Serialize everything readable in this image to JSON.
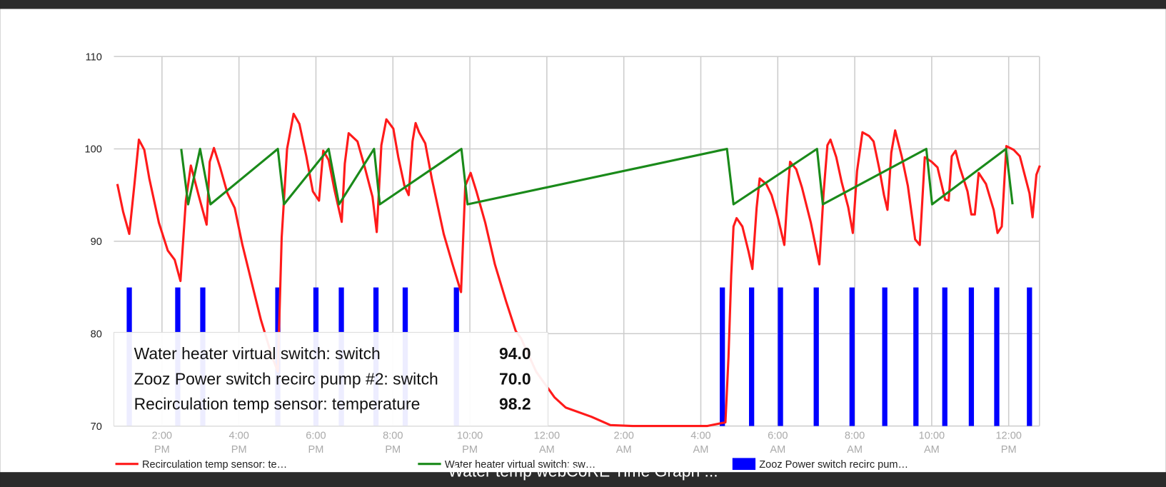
{
  "chart_data": {
    "type": "line",
    "xlim": [
      12.75,
      36.8
    ],
    "ylim": [
      70,
      110
    ],
    "yticks": [
      70,
      80,
      90,
      100,
      110
    ],
    "xticks": [
      {
        "value": 14,
        "label": "2:00 PM"
      },
      {
        "value": 16,
        "label": "4:00 PM"
      },
      {
        "value": 18,
        "label": "6:00 PM"
      },
      {
        "value": 20,
        "label": "8:00 PM"
      },
      {
        "value": 22,
        "label": "10:00 PM"
      },
      {
        "value": 24,
        "label": "12:00 AM"
      },
      {
        "value": 26,
        "label": "2:00 AM"
      },
      {
        "value": 28,
        "label": "4:00 AM"
      },
      {
        "value": 30,
        "label": "6:00 AM"
      },
      {
        "value": 32,
        "label": "8:00 AM"
      },
      {
        "value": 34,
        "label": "10:00 AM"
      },
      {
        "value": 36,
        "label": "12:00 PM"
      }
    ],
    "grid": true,
    "series": [
      {
        "name": "Recirculation temp sensor: te…",
        "color": "#ff1a1a",
        "type": "line",
        "x": [
          12.84,
          12.99,
          13.15,
          13.29,
          13.4,
          13.54,
          13.67,
          13.92,
          14.15,
          14.33,
          14.48,
          14.62,
          14.75,
          14.95,
          15.16,
          15.24,
          15.35,
          15.51,
          15.7,
          15.89,
          16.09,
          16.38,
          16.57,
          16.86,
          17.01,
          17.11,
          17.25,
          17.42,
          17.57,
          17.75,
          17.92,
          18.08,
          18.19,
          18.33,
          18.48,
          18.67,
          18.75,
          18.85,
          19.08,
          19.27,
          19.47,
          19.58,
          19.7,
          19.83,
          20.01,
          20.14,
          20.3,
          20.41,
          20.51,
          20.59,
          20.68,
          20.84,
          21.01,
          21.32,
          21.55,
          21.77,
          21.88,
          22.02,
          22.17,
          22.4,
          22.65,
          22.94,
          23.19,
          23.33,
          23.72,
          24.2,
          24.49,
          25.16,
          25.65,
          26.23,
          28.16,
          28.64,
          28.72,
          28.79,
          28.85,
          28.93,
          29.08,
          29.24,
          29.34,
          29.45,
          29.53,
          29.7,
          29.84,
          29.99,
          30.17,
          30.25,
          30.32,
          30.48,
          30.63,
          30.86,
          31.08,
          31.19,
          31.29,
          31.37,
          31.52,
          31.66,
          31.83,
          31.95,
          32.06,
          32.2,
          32.37,
          32.49,
          32.64,
          32.76,
          32.85,
          32.95,
          33.05,
          33.22,
          33.38,
          33.57,
          33.69,
          33.82,
          34.0,
          34.15,
          34.35,
          34.44,
          34.52,
          34.62,
          34.73,
          34.93,
          35.03,
          35.12,
          35.22,
          35.41,
          35.61,
          35.71,
          35.82,
          35.94,
          36.13,
          36.29,
          36.54,
          36.62,
          36.72,
          36.81
        ],
        "values": [
          96.2,
          93.2,
          90.8,
          96.4,
          101,
          99.9,
          96.8,
          92,
          89,
          88,
          85.7,
          94.4,
          98.2,
          95,
          91.8,
          98.6,
          100.1,
          98,
          95.2,
          93.6,
          89.6,
          84.7,
          81.5,
          77.5,
          75.9,
          90.4,
          100,
          103.8,
          102.7,
          99.2,
          95.4,
          94.4,
          99.8,
          98.8,
          95.6,
          92.1,
          98.4,
          101.7,
          100.8,
          98,
          94.8,
          91,
          100.4,
          103.2,
          102.2,
          99.1,
          96,
          95,
          100.8,
          102.8,
          101.8,
          100.6,
          96.8,
          90.8,
          87.5,
          84.5,
          96,
          97.4,
          95.4,
          92,
          87.5,
          83.5,
          80.3,
          79.5,
          75.9,
          73.1,
          72,
          71,
          70.1,
          70,
          70,
          70.4,
          77.5,
          86.3,
          91.6,
          92.5,
          91.6,
          88.9,
          87,
          93.6,
          96.8,
          96.2,
          95,
          92.8,
          89.6,
          94.8,
          98.6,
          97.8,
          95.8,
          92,
          87.5,
          95.2,
          100.4,
          101,
          99.1,
          96.4,
          93.7,
          90.9,
          97.6,
          101.8,
          101.4,
          100.8,
          97.8,
          95,
          93.4,
          99.6,
          102,
          99.2,
          96,
          90.2,
          89.6,
          99.1,
          98.6,
          98,
          94.5,
          94.4,
          99.2,
          99.8,
          98,
          95.4,
          92.9,
          92.9,
          97.4,
          96.2,
          93.4,
          90.9,
          91.6,
          100.3,
          99.9,
          99.2,
          95.2,
          92.6,
          97.2,
          98.2
        ]
      },
      {
        "name": "Water heater virtual switch: sw…",
        "color": "#1a8a1a",
        "type": "line",
        "x": [
          14.5,
          14.68,
          14.99,
          15.26,
          17.01,
          17.17,
          18.33,
          18.6,
          19.51,
          19.66,
          21.78,
          21.94,
          28.68,
          28.85,
          31.02,
          31.17,
          33.86,
          34.01,
          35.93,
          36.1
        ],
        "values": [
          100,
          94,
          100,
          94,
          100,
          94,
          100,
          94,
          100,
          94,
          100,
          94,
          100,
          94,
          100,
          94,
          100,
          94,
          100,
          94
        ]
      },
      {
        "name": "Zooz Power switch recirc pum…",
        "color": "#0000ff",
        "type": "bar",
        "x": [
          13.15,
          14.41,
          15.06,
          17.01,
          18.0,
          18.66,
          19.56,
          20.32,
          21.65,
          28.56,
          29.32,
          30.07,
          31.0,
          31.93,
          32.78,
          33.59,
          34.34,
          35.03,
          35.69,
          36.54
        ],
        "values": [
          85,
          85,
          85,
          85,
          85,
          85,
          85,
          85,
          85,
          85,
          85,
          85,
          85,
          85,
          85,
          85,
          85,
          85,
          85,
          85
        ]
      }
    ]
  },
  "tooltip": {
    "rows": [
      {
        "label": "Water heater virtual switch: switch",
        "value": "94.0"
      },
      {
        "label": "Zooz Power switch recirc pump #2: switch",
        "value": "70.0"
      },
      {
        "label": "Recirculation temp sensor: temperature",
        "value": "98.2"
      }
    ]
  },
  "footer_title": "Water temp webCoRE Time Graph ..."
}
